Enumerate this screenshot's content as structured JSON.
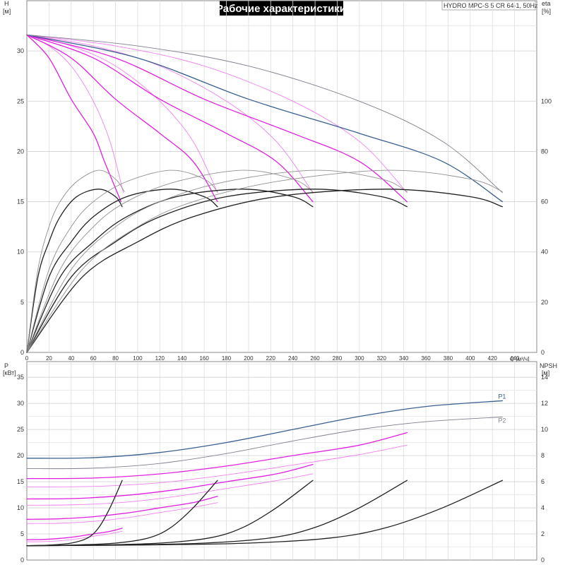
{
  "title": "Рабочие характеристики",
  "model": "HYDRO MPC-S 5 CR 64-1, 50Hz",
  "chart_data": [
    {
      "type": "line",
      "name": "head-eta",
      "xlabel": "Q [м³/ч]",
      "ylabel_left": "H",
      "ylabel_left_unit": "[м]",
      "ylabel_right": "eta",
      "ylabel_right_unit": "[%]",
      "xlim": [
        0,
        460
      ],
      "ylim_left": [
        0,
        35
      ],
      "ylim_right": [
        0,
        140
      ],
      "x_ticks": [
        0,
        20,
        40,
        60,
        80,
        100,
        120,
        140,
        160,
        180,
        200,
        220,
        240,
        260,
        280,
        300,
        320,
        340,
        360,
        380,
        400,
        420,
        440
      ],
      "y_ticks_left": [
        0,
        5,
        10,
        15,
        20,
        25,
        30
      ],
      "y_ticks_right": [
        0,
        20,
        40,
        60,
        80,
        100
      ],
      "grid": true,
      "series": [
        {
          "group": "head",
          "axis": "left",
          "color": "#e020e0",
          "x": [
            0,
            20,
            40,
            60,
            70,
            85
          ],
          "y": [
            31.6,
            29.3,
            25.2,
            21.8,
            19.0,
            15.0
          ]
        },
        {
          "group": "head",
          "axis": "left",
          "color": "#f080f0",
          "x": [
            0,
            20,
            40,
            60,
            75,
            87
          ],
          "y": [
            31.6,
            30.5,
            28.5,
            25.0,
            21.0,
            15.9
          ]
        },
        {
          "group": "head",
          "axis": "left",
          "color": "#e020e0",
          "x": [
            0,
            40,
            80,
            120,
            150,
            172
          ],
          "y": [
            31.6,
            29.3,
            25.2,
            21.8,
            19.0,
            15.0
          ]
        },
        {
          "group": "head",
          "axis": "left",
          "color": "#f080f0",
          "x": [
            0,
            40,
            80,
            120,
            150,
            172
          ],
          "y": [
            31.6,
            30.5,
            28.5,
            25.0,
            21.0,
            15.9
          ]
        },
        {
          "group": "head",
          "axis": "left",
          "color": "#e020e0",
          "x": [
            0,
            60,
            120,
            180,
            225,
            258
          ],
          "y": [
            31.6,
            29.3,
            25.2,
            21.8,
            19.0,
            15.0
          ]
        },
        {
          "group": "head",
          "axis": "left",
          "color": "#f080f0",
          "x": [
            0,
            60,
            120,
            180,
            225,
            258
          ],
          "y": [
            31.6,
            30.5,
            28.5,
            25.0,
            21.0,
            15.9
          ]
        },
        {
          "group": "head",
          "axis": "left",
          "color": "#e020e0",
          "x": [
            0,
            80,
            160,
            240,
            300,
            343
          ],
          "y": [
            31.6,
            29.3,
            25.2,
            21.8,
            19.0,
            15.0
          ]
        },
        {
          "group": "head",
          "axis": "left",
          "color": "#f080f0",
          "x": [
            0,
            80,
            160,
            240,
            300,
            343
          ],
          "y": [
            31.6,
            30.5,
            28.5,
            25.0,
            21.0,
            15.9
          ]
        },
        {
          "group": "head",
          "axis": "left",
          "color": "#3a6090",
          "x": [
            0,
            100,
            200,
            300,
            375,
            429
          ],
          "y": [
            31.6,
            29.3,
            25.2,
            21.8,
            19.0,
            15.0
          ]
        },
        {
          "group": "head",
          "axis": "left",
          "color": "#808090",
          "x": [
            0,
            100,
            200,
            300,
            375,
            429
          ],
          "y": [
            31.6,
            30.5,
            28.5,
            25.0,
            21.0,
            15.9
          ]
        },
        {
          "group": "eta",
          "axis": "right",
          "color": "#222222",
          "x": [
            0,
            10,
            20,
            30,
            45,
            65,
            80,
            86
          ],
          "y": [
            0,
            30,
            44,
            54,
            62,
            65,
            62,
            58
          ]
        },
        {
          "group": "eta",
          "axis": "right",
          "color": "#909090",
          "x": [
            0,
            10,
            20,
            30,
            45,
            65,
            80,
            88
          ],
          "y": [
            0,
            33,
            50,
            60,
            68,
            72.5,
            69,
            64
          ]
        },
        {
          "group": "eta",
          "axis": "right",
          "color": "#222222",
          "x": [
            0,
            20,
            40,
            60,
            90,
            130,
            160,
            172
          ],
          "y": [
            0,
            30,
            44,
            54,
            62,
            65,
            62,
            58
          ]
        },
        {
          "group": "eta",
          "axis": "right",
          "color": "#909090",
          "x": [
            0,
            20,
            40,
            60,
            90,
            130,
            160,
            172
          ],
          "y": [
            0,
            33,
            50,
            60,
            68,
            72.5,
            69,
            64
          ]
        },
        {
          "group": "eta",
          "axis": "right",
          "color": "#222222",
          "x": [
            0,
            30,
            60,
            90,
            135,
            195,
            240,
            258
          ],
          "y": [
            0,
            30,
            44,
            54,
            62,
            65,
            62,
            58
          ]
        },
        {
          "group": "eta",
          "axis": "right",
          "color": "#909090",
          "x": [
            0,
            30,
            60,
            90,
            135,
            195,
            240,
            258
          ],
          "y": [
            0,
            33,
            50,
            60,
            68,
            72.5,
            69,
            64
          ]
        },
        {
          "group": "eta",
          "axis": "right",
          "color": "#222222",
          "x": [
            0,
            40,
            80,
            120,
            180,
            260,
            320,
            343
          ],
          "y": [
            0,
            30,
            44,
            54,
            62,
            65,
            62,
            58
          ]
        },
        {
          "group": "eta",
          "axis": "right",
          "color": "#909090",
          "x": [
            0,
            40,
            80,
            120,
            180,
            260,
            320,
            343
          ],
          "y": [
            0,
            33,
            50,
            60,
            68,
            72.5,
            69,
            64
          ]
        },
        {
          "group": "eta",
          "axis": "right",
          "color": "#222222",
          "x": [
            0,
            50,
            100,
            150,
            225,
            325,
            400,
            429
          ],
          "y": [
            0,
            30,
            44,
            54,
            62,
            65,
            62,
            58
          ]
        },
        {
          "group": "eta",
          "axis": "right",
          "color": "#909090",
          "x": [
            0,
            50,
            100,
            150,
            225,
            325,
            400,
            429
          ],
          "y": [
            0,
            33,
            50,
            60,
            68,
            72.5,
            69,
            64
          ]
        }
      ]
    },
    {
      "type": "line",
      "name": "power-npsh",
      "ylabel_left": "P",
      "ylabel_left_unit": "[кВт]",
      "ylabel_right": "NPSH",
      "ylabel_right_unit": "[м]",
      "xlim": [
        0,
        460
      ],
      "ylim_left": [
        0,
        38
      ],
      "ylim_right": [
        0,
        15.2
      ],
      "y_ticks_left": [
        0,
        5,
        10,
        15,
        20,
        25,
        30,
        35
      ],
      "y_ticks_right": [
        0,
        2,
        4,
        6,
        8,
        10,
        12,
        14
      ],
      "grid": true,
      "series": [
        {
          "group": "power",
          "axis": "left",
          "color": "#3a6090",
          "name": "P1",
          "x": [
            0,
            60,
            120,
            180,
            240,
            300,
            360,
            429
          ],
          "y": [
            19.5,
            19.6,
            20.6,
            22.5,
            25.0,
            27.5,
            29.4,
            30.5
          ]
        },
        {
          "group": "power",
          "axis": "left",
          "color": "#808090",
          "name": "P2",
          "x": [
            0,
            60,
            120,
            180,
            240,
            300,
            360,
            429
          ],
          "y": [
            17.5,
            17.6,
            18.5,
            20.4,
            22.8,
            25.0,
            26.5,
            27.4
          ]
        },
        {
          "group": "power",
          "axis": "left",
          "color": "#e020e0",
          "x": [
            0,
            60,
            120,
            180,
            240,
            300,
            343
          ],
          "y": [
            15.6,
            15.7,
            16.5,
            18.0,
            20.0,
            22.0,
            24.4
          ]
        },
        {
          "group": "power",
          "axis": "left",
          "color": "#f080f0",
          "x": [
            0,
            60,
            120,
            180,
            240,
            300,
            343
          ],
          "y": [
            14.0,
            14.1,
            14.8,
            16.3,
            18.2,
            20.2,
            22.0
          ]
        },
        {
          "group": "power",
          "axis": "left",
          "color": "#e020e0",
          "x": [
            0,
            45,
            90,
            135,
            180,
            225,
            258
          ],
          "y": [
            11.7,
            11.8,
            12.4,
            13.5,
            15.0,
            16.5,
            18.3
          ]
        },
        {
          "group": "power",
          "axis": "left",
          "color": "#f080f0",
          "x": [
            0,
            45,
            90,
            135,
            180,
            225,
            258
          ],
          "y": [
            10.5,
            10.6,
            11.1,
            12.2,
            13.7,
            15.2,
            16.5
          ]
        },
        {
          "group": "power",
          "axis": "left",
          "color": "#e020e0",
          "x": [
            0,
            30,
            60,
            90,
            120,
            150,
            172
          ],
          "y": [
            7.8,
            7.9,
            8.3,
            9.0,
            10.0,
            11.0,
            12.2
          ]
        },
        {
          "group": "power",
          "axis": "left",
          "color": "#f080f0",
          "x": [
            0,
            30,
            60,
            90,
            120,
            150,
            172
          ],
          "y": [
            7.0,
            7.05,
            7.4,
            8.1,
            9.1,
            10.1,
            11.0
          ]
        },
        {
          "group": "power",
          "axis": "left",
          "color": "#e020e0",
          "x": [
            0,
            15,
            30,
            45,
            60,
            75,
            86
          ],
          "y": [
            3.9,
            3.95,
            4.15,
            4.5,
            5.0,
            5.5,
            6.1
          ]
        },
        {
          "group": "power",
          "axis": "left",
          "color": "#f080f0",
          "x": [
            0,
            15,
            30,
            45,
            60,
            75,
            86
          ],
          "y": [
            3.5,
            3.52,
            3.7,
            4.05,
            4.55,
            5.05,
            5.5
          ]
        },
        {
          "group": "npsh",
          "axis": "right",
          "color": "#222222",
          "x": [
            0,
            20,
            40,
            55,
            65,
            75,
            86
          ],
          "y": [
            1.1,
            1.15,
            1.3,
            1.7,
            2.5,
            4.0,
            6.1
          ]
        },
        {
          "group": "npsh",
          "axis": "right",
          "color": "#222222",
          "x": [
            0,
            40,
            80,
            110,
            130,
            150,
            172
          ],
          "y": [
            1.1,
            1.15,
            1.3,
            1.7,
            2.5,
            4.0,
            6.1
          ]
        },
        {
          "group": "npsh",
          "axis": "right",
          "color": "#222222",
          "x": [
            0,
            60,
            120,
            165,
            195,
            225,
            258
          ],
          "y": [
            1.1,
            1.15,
            1.3,
            1.7,
            2.5,
            4.0,
            6.1
          ]
        },
        {
          "group": "npsh",
          "axis": "right",
          "color": "#222222",
          "x": [
            0,
            80,
            160,
            220,
            260,
            300,
            343
          ],
          "y": [
            1.1,
            1.15,
            1.3,
            1.7,
            2.5,
            4.0,
            6.1
          ]
        },
        {
          "group": "npsh",
          "axis": "right",
          "color": "#222222",
          "x": [
            0,
            100,
            200,
            275,
            325,
            375,
            429
          ],
          "y": [
            1.1,
            1.15,
            1.3,
            1.7,
            2.5,
            4.0,
            6.1
          ]
        }
      ]
    }
  ]
}
